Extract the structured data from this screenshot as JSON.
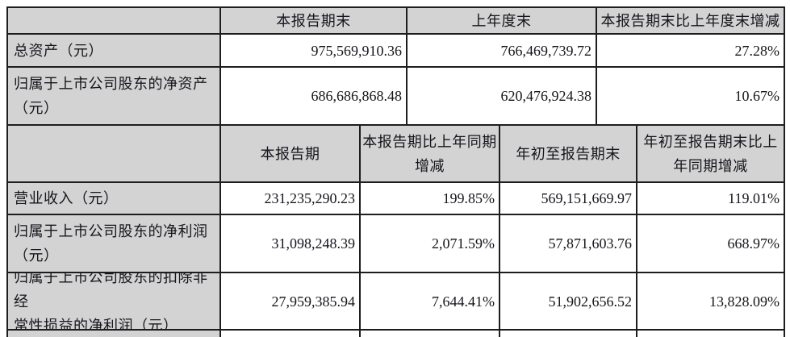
{
  "colors": {
    "header_bg": "#d3d3d3",
    "border": "#1d1d1d",
    "text": "#15161c"
  },
  "table1": {
    "headers": [
      "",
      "本报告期末",
      "上年度末",
      "本报告期末比上年度末增减"
    ],
    "rows": [
      {
        "label": "总资产（元）",
        "values": [
          "975,569,910.36",
          "766,469,739.72",
          "27.28%"
        ]
      },
      {
        "label": "归属于上市公司股东的净资产\n（元）",
        "values": [
          "686,686,868.48",
          "620,476,924.38",
          "10.67%"
        ]
      }
    ]
  },
  "table2": {
    "headers": [
      "",
      "本报告期",
      "本报告期比上年同期\n增减",
      "年初至报告期末",
      "年初至报告期末比上\n年同期增减"
    ],
    "rows": [
      {
        "label": "营业收入（元）",
        "values": [
          "231,235,290.23",
          "199.85%",
          "569,151,669.97",
          "119.01%"
        ]
      },
      {
        "label": "归属于上市公司股东的净利润\n（元）",
        "values": [
          "31,098,248.39",
          "2,071.59%",
          "57,871,603.76",
          "668.97%"
        ]
      },
      {
        "label": "归属于上市公司股东的扣除非经\n常性损益的净利润（元）",
        "values": [
          "27,959,385.94",
          "7,644.41%",
          "51,902,656.52",
          "13,828.09%"
        ]
      }
    ]
  }
}
